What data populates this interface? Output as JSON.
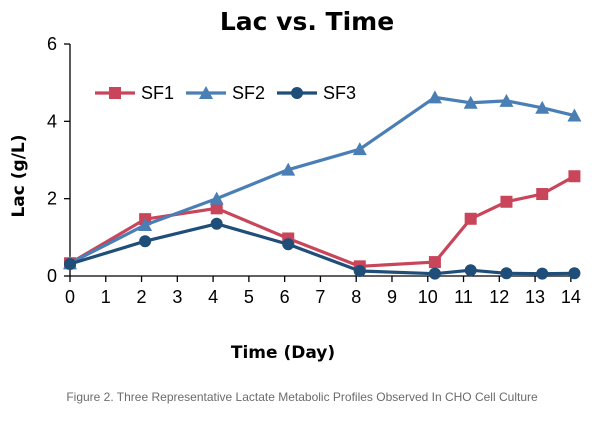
{
  "caption": "Figure 2. Three Representative Lactate Metabolic Profiles Observed In CHO Cell Culture",
  "chart_data": {
    "type": "line",
    "title": "Lac vs. Time",
    "xlabel": "Time (Day)",
    "ylabel": "Lac (g/L)",
    "xlim": [
      0,
      14.2
    ],
    "ylim": [
      0,
      6
    ],
    "xticks": [
      0,
      1,
      2,
      3,
      4,
      5,
      6,
      7,
      8,
      9,
      10,
      11,
      12,
      13,
      14
    ],
    "yticks": [
      0,
      2,
      4,
      6
    ],
    "grid": false,
    "legend_position": "top-left",
    "series": [
      {
        "name": "SF1",
        "color": "#c8455a",
        "marker": "square",
        "x": [
          0,
          2.1,
          4.1,
          6.1,
          8.1,
          10.2,
          11.2,
          12.2,
          13.2,
          14.1
        ],
        "y": [
          0.33,
          1.47,
          1.75,
          0.97,
          0.25,
          0.36,
          1.48,
          1.92,
          2.12,
          2.58
        ]
      },
      {
        "name": "SF2",
        "color": "#4a7fb5",
        "marker": "triangle",
        "x": [
          0,
          2.1,
          4.1,
          6.1,
          8.1,
          10.2,
          11.2,
          12.2,
          13.2,
          14.1
        ],
        "y": [
          0.33,
          1.32,
          2.0,
          2.75,
          3.28,
          4.62,
          4.48,
          4.53,
          4.35,
          4.15
        ]
      },
      {
        "name": "SF3",
        "color": "#1f4e79",
        "marker": "circle",
        "x": [
          0,
          2.1,
          4.1,
          6.1,
          8.1,
          10.2,
          11.2,
          12.2,
          13.2,
          14.1
        ],
        "y": [
          0.31,
          0.9,
          1.35,
          0.82,
          0.13,
          0.06,
          0.15,
          0.07,
          0.06,
          0.07
        ]
      }
    ]
  }
}
